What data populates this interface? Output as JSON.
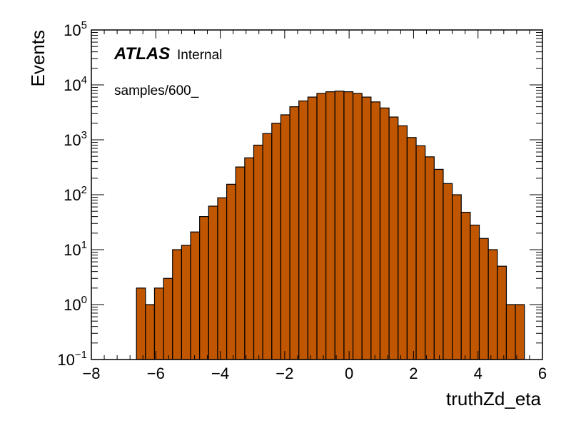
{
  "chart_data": {
    "type": "bar",
    "xlabel": "truthZd_eta",
    "ylabel": "Events",
    "xlim": [
      -8,
      6
    ],
    "ylim": [
      0.1,
      100000
    ],
    "yscale": "log",
    "x_ticks": [
      -8,
      -6,
      -4,
      -2,
      0,
      2,
      4,
      6
    ],
    "x_tick_labels": [
      "−8",
      "−6",
      "−4",
      "−2",
      "0",
      "2",
      "4",
      "6"
    ],
    "y_ticks": [
      {
        "value": 0.1,
        "base": "10",
        "exp": "−1"
      },
      {
        "value": 1,
        "base": "10",
        "exp": "0"
      },
      {
        "value": 10,
        "base": "10",
        "exp": "1"
      },
      {
        "value": 100,
        "base": "10",
        "exp": "2"
      },
      {
        "value": 1000,
        "base": "10",
        "exp": "3"
      },
      {
        "value": 10000,
        "base": "10",
        "exp": "4"
      },
      {
        "value": 100000,
        "base": "10",
        "exp": "5"
      }
    ],
    "bin_width": 0.28,
    "bin_edges_start": -6.6,
    "values": [
      2,
      1,
      2,
      3,
      10,
      12,
      21,
      40,
      62,
      88,
      155,
      320,
      470,
      800,
      1300,
      2000,
      2850,
      4000,
      5100,
      6000,
      7000,
      7500,
      7700,
      7500,
      7000,
      6000,
      4900,
      3800,
      2600,
      1800,
      1100,
      780,
      490,
      290,
      160,
      100,
      48,
      28,
      16,
      10,
      5,
      1,
      1
    ],
    "bar_color": "#c05600",
    "grid": false,
    "annotations": {
      "experiment": "ATLAS",
      "status": "Internal",
      "sample": "samples/600_"
    }
  }
}
